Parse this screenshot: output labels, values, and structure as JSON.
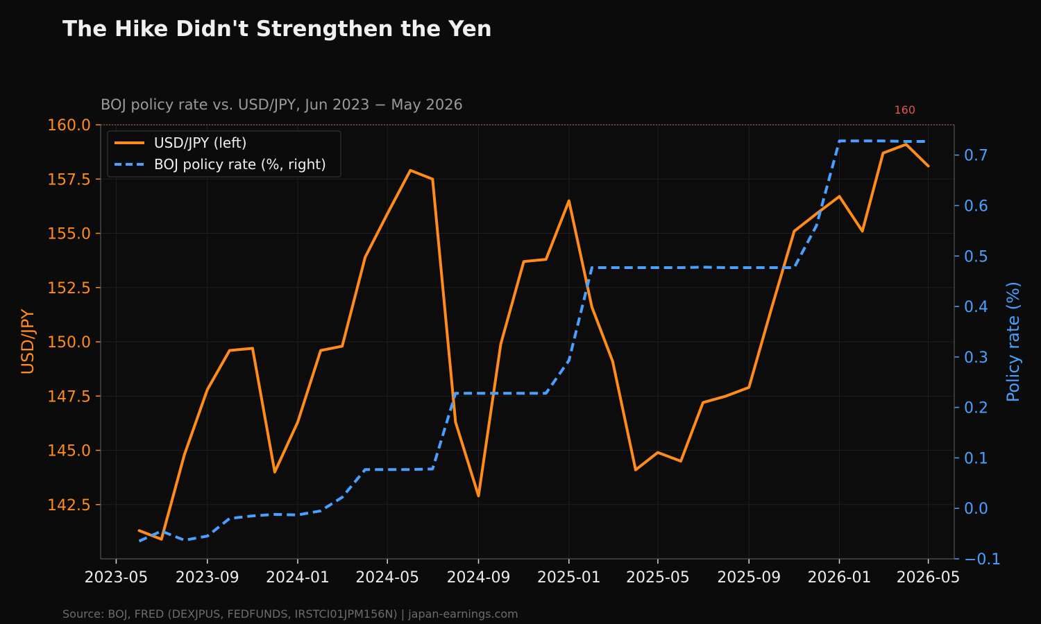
{
  "colors": {
    "background": "#0b0b0b",
    "usdjpy": "#ff8c1a",
    "boj": "#4aa0ff",
    "reference": "#e05555",
    "grid": "#1f1f1f",
    "spine": "#555555"
  },
  "chart_data": {
    "type": "line",
    "title": "The Hike Didn't Strengthen the Yen",
    "subtitle": "BOJ policy rate vs. USD/JPY, Jun 2023 − May 2026",
    "source": "Source: BOJ, FRED (DEXJPUS, FEDFUNDS, IRSTCI01JPM156N) | japan-earnings.com",
    "ylabel_left": "USD/JPY",
    "ylabel_right": "Policy rate (%)",
    "ylim_left": [
      140.0,
      160.0
    ],
    "ylim_right": [
      -0.1,
      0.76
    ],
    "xlim": [
      "2023-04-10",
      "2026-06-05"
    ],
    "y_ticks_left": [
      "142.5",
      "145.0",
      "147.5",
      "150.0",
      "152.5",
      "155.0",
      "157.5",
      "160.0"
    ],
    "y_ticks_right": [
      "−0.1",
      "0.0",
      "0.1",
      "0.2",
      "0.3",
      "0.4",
      "0.5",
      "0.6",
      "0.7"
    ],
    "x_ticks": [
      "2023-05",
      "2023-09",
      "2024-01",
      "2024-05",
      "2024-09",
      "2025-01",
      "2025-05",
      "2025-09",
      "2026-01",
      "2026-05"
    ],
    "grid": true,
    "legend_position": "top-left",
    "reference_line": {
      "axis": "left",
      "value": 160,
      "label": "160"
    },
    "x": [
      "2023-06-01",
      "2023-07-01",
      "2023-08-01",
      "2023-09-01",
      "2023-10-01",
      "2023-11-01",
      "2023-12-01",
      "2024-01-01",
      "2024-02-01",
      "2024-03-01",
      "2024-04-01",
      "2024-05-01",
      "2024-06-01",
      "2024-07-01",
      "2024-08-01",
      "2024-09-01",
      "2024-10-01",
      "2024-11-01",
      "2024-12-01",
      "2025-01-01",
      "2025-02-01",
      "2025-03-01",
      "2025-04-01",
      "2025-05-01",
      "2025-06-01",
      "2025-07-01",
      "2025-08-01",
      "2025-09-01",
      "2025-10-01",
      "2025-11-01",
      "2025-12-01",
      "2026-01-01",
      "2026-02-01",
      "2026-03-01",
      "2026-04-01",
      "2026-05-01"
    ],
    "series": [
      {
        "name": "USD/JPY (left)",
        "axis": "left",
        "style": "solid",
        "values": [
          141.3,
          140.9,
          144.8,
          147.8,
          149.6,
          149.7,
          144.0,
          146.3,
          149.6,
          149.8,
          153.9,
          155.9,
          157.9,
          157.5,
          146.3,
          142.9,
          149.9,
          153.7,
          153.8,
          156.5,
          151.6,
          149.1,
          144.1,
          144.9,
          144.5,
          147.2,
          147.5,
          147.9,
          151.5,
          155.1,
          155.9,
          156.7,
          155.1,
          158.7,
          159.1,
          158.1
        ]
      },
      {
        "name": "BOJ policy rate (%, right)",
        "axis": "right",
        "style": "dashed",
        "values": [
          -0.065,
          -0.045,
          -0.063,
          -0.055,
          -0.02,
          -0.015,
          -0.012,
          -0.013,
          -0.005,
          0.022,
          0.077,
          0.077,
          0.077,
          0.078,
          0.228,
          0.228,
          0.228,
          0.228,
          0.228,
          0.293,
          0.477,
          0.477,
          0.477,
          0.477,
          0.477,
          0.478,
          0.477,
          0.477,
          0.477,
          0.477,
          0.56,
          0.728,
          0.728,
          0.728,
          0.727,
          0.727
        ]
      }
    ]
  }
}
